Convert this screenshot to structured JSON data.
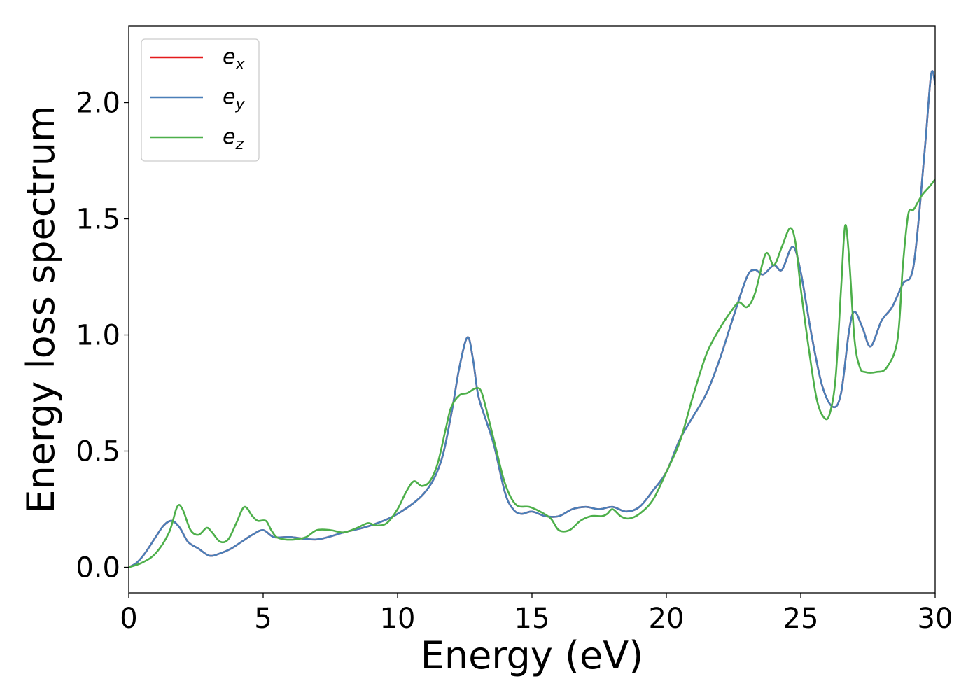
{
  "chart_data": {
    "type": "line",
    "title": "",
    "xlabel": "Energy (eV)",
    "ylabel": "Energy loss spectrum",
    "xlim": [
      0,
      30
    ],
    "ylim": [
      -0.11,
      2.33
    ],
    "xticks": [
      0,
      5,
      10,
      15,
      20,
      25,
      30
    ],
    "xtick_labels": [
      "0",
      "5",
      "10",
      "15",
      "20",
      "25",
      "30"
    ],
    "yticks": [
      0.0,
      0.5,
      1.0,
      1.5,
      2.0
    ],
    "ytick_labels": [
      "0.0",
      "0.5",
      "1.0",
      "1.5",
      "2.0"
    ],
    "grid": false,
    "legend_position": "top-left",
    "series": [
      {
        "name": "e_x",
        "name_base": "e",
        "name_sub": "x",
        "color": "#e41a1c",
        "x": [
          0,
          0.3,
          0.6,
          1.0,
          1.3,
          1.6,
          1.9,
          2.2,
          2.6,
          3.0,
          3.4,
          3.8,
          4.2,
          4.6,
          5.0,
          5.4,
          6.0,
          7.0,
          8.0,
          9.0,
          10.0,
          11.0,
          11.6,
          12.0,
          12.3,
          12.6,
          12.8,
          13.0,
          13.3,
          13.6,
          14.0,
          14.3,
          14.6,
          15.0,
          15.5,
          16.0,
          16.5,
          17.0,
          17.5,
          18.0,
          18.5,
          19.0,
          19.5,
          20.0,
          20.5,
          21.0,
          21.5,
          22.0,
          22.5,
          23.0,
          23.3,
          23.6,
          24.0,
          24.3,
          24.7,
          25.0,
          25.4,
          25.8,
          26.2,
          26.5,
          26.8,
          27.0,
          27.3,
          27.6,
          28.0,
          28.4,
          28.8,
          29.2,
          29.6,
          29.85,
          30.0
        ],
        "y": [
          0.0,
          0.02,
          0.06,
          0.13,
          0.18,
          0.2,
          0.17,
          0.11,
          0.08,
          0.05,
          0.06,
          0.08,
          0.11,
          0.14,
          0.16,
          0.13,
          0.13,
          0.12,
          0.15,
          0.18,
          0.23,
          0.32,
          0.45,
          0.66,
          0.86,
          0.99,
          0.9,
          0.74,
          0.63,
          0.52,
          0.32,
          0.25,
          0.23,
          0.24,
          0.22,
          0.22,
          0.25,
          0.26,
          0.25,
          0.26,
          0.24,
          0.26,
          0.33,
          0.41,
          0.55,
          0.65,
          0.75,
          0.9,
          1.08,
          1.25,
          1.28,
          1.26,
          1.3,
          1.28,
          1.38,
          1.27,
          1.0,
          0.78,
          0.69,
          0.75,
          1.02,
          1.1,
          1.03,
          0.95,
          1.06,
          1.12,
          1.22,
          1.3,
          1.78,
          2.12,
          2.08
        ]
      },
      {
        "name": "e_y",
        "name_base": "e",
        "name_sub": "y",
        "color": "#4a7fb8",
        "x": [
          0,
          0.3,
          0.6,
          1.0,
          1.3,
          1.6,
          1.9,
          2.2,
          2.6,
          3.0,
          3.4,
          3.8,
          4.2,
          4.6,
          5.0,
          5.4,
          6.0,
          7.0,
          8.0,
          9.0,
          10.0,
          11.0,
          11.6,
          12.0,
          12.3,
          12.6,
          12.8,
          13.0,
          13.3,
          13.6,
          14.0,
          14.3,
          14.6,
          15.0,
          15.5,
          16.0,
          16.5,
          17.0,
          17.5,
          18.0,
          18.5,
          19.0,
          19.5,
          20.0,
          20.5,
          21.0,
          21.5,
          22.0,
          22.5,
          23.0,
          23.3,
          23.6,
          24.0,
          24.3,
          24.7,
          25.0,
          25.4,
          25.8,
          26.2,
          26.5,
          26.8,
          27.0,
          27.3,
          27.6,
          28.0,
          28.4,
          28.8,
          29.2,
          29.6,
          29.85,
          30.0
        ],
        "y": [
          0.0,
          0.02,
          0.06,
          0.13,
          0.18,
          0.2,
          0.17,
          0.11,
          0.08,
          0.05,
          0.06,
          0.08,
          0.11,
          0.14,
          0.16,
          0.13,
          0.13,
          0.12,
          0.15,
          0.18,
          0.23,
          0.32,
          0.45,
          0.66,
          0.86,
          0.99,
          0.9,
          0.74,
          0.63,
          0.52,
          0.32,
          0.25,
          0.23,
          0.24,
          0.22,
          0.22,
          0.25,
          0.26,
          0.25,
          0.26,
          0.24,
          0.26,
          0.33,
          0.41,
          0.55,
          0.65,
          0.75,
          0.9,
          1.08,
          1.25,
          1.28,
          1.26,
          1.3,
          1.28,
          1.38,
          1.27,
          1.0,
          0.78,
          0.69,
          0.75,
          1.02,
          1.1,
          1.03,
          0.95,
          1.06,
          1.12,
          1.22,
          1.3,
          1.78,
          2.12,
          2.08
        ]
      },
      {
        "name": "e_z",
        "name_base": "e",
        "name_sub": "z",
        "color": "#4daf4a",
        "x": [
          0,
          0.5,
          1.0,
          1.5,
          1.8,
          2.0,
          2.3,
          2.6,
          2.9,
          3.1,
          3.4,
          3.7,
          4.0,
          4.3,
          4.6,
          4.8,
          5.1,
          5.3,
          5.5,
          5.8,
          6.2,
          6.6,
          7.0,
          7.5,
          8.0,
          8.5,
          8.9,
          9.2,
          9.6,
          10.0,
          10.3,
          10.6,
          10.9,
          11.2,
          11.5,
          11.8,
          12.0,
          12.3,
          12.6,
          12.9,
          13.1,
          13.3,
          13.6,
          14.0,
          14.4,
          14.9,
          15.3,
          15.7,
          16.0,
          16.4,
          16.8,
          17.2,
          17.6,
          17.8,
          18.0,
          18.3,
          18.6,
          19.0,
          19.5,
          20.0,
          20.5,
          21.0,
          21.5,
          22.0,
          22.4,
          22.7,
          23.0,
          23.3,
          23.7,
          24.0,
          24.3,
          24.6,
          24.8,
          25.0,
          25.3,
          25.6,
          25.9,
          26.1,
          26.3,
          26.5,
          26.65,
          26.8,
          27.0,
          27.2,
          27.4,
          27.8,
          28.2,
          28.6,
          28.8,
          29.0,
          29.2,
          29.5,
          29.8,
          30.0
        ],
        "y": [
          0.0,
          0.02,
          0.06,
          0.15,
          0.26,
          0.25,
          0.16,
          0.14,
          0.17,
          0.15,
          0.11,
          0.12,
          0.19,
          0.26,
          0.22,
          0.2,
          0.2,
          0.16,
          0.13,
          0.12,
          0.12,
          0.13,
          0.16,
          0.16,
          0.15,
          0.17,
          0.19,
          0.18,
          0.19,
          0.25,
          0.32,
          0.37,
          0.35,
          0.37,
          0.45,
          0.6,
          0.69,
          0.74,
          0.75,
          0.77,
          0.76,
          0.68,
          0.54,
          0.36,
          0.27,
          0.26,
          0.24,
          0.21,
          0.16,
          0.16,
          0.2,
          0.22,
          0.22,
          0.23,
          0.25,
          0.22,
          0.21,
          0.23,
          0.29,
          0.41,
          0.54,
          0.74,
          0.92,
          1.03,
          1.1,
          1.14,
          1.12,
          1.18,
          1.35,
          1.3,
          1.38,
          1.46,
          1.4,
          1.2,
          0.94,
          0.72,
          0.64,
          0.67,
          0.82,
          1.2,
          1.47,
          1.33,
          0.98,
          0.86,
          0.84,
          0.84,
          0.86,
          0.98,
          1.3,
          1.52,
          1.54,
          1.6,
          1.64,
          1.67
        ]
      }
    ]
  }
}
